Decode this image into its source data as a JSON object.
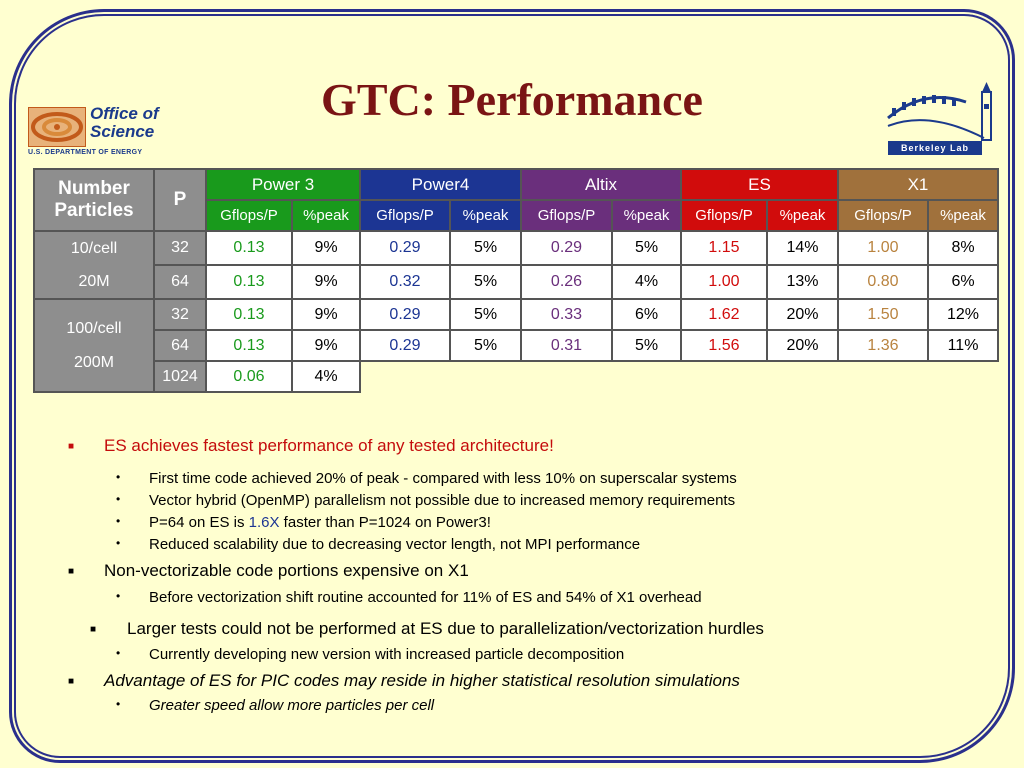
{
  "title": "GTC: Performance",
  "logo_left": {
    "line1": "Office of",
    "line2": "Science",
    "sub": "U.S. DEPARTMENT OF ENERGY"
  },
  "logo_right": {
    "name": "Berkeley Lab"
  },
  "table": {
    "hdr_particles": "Number Particles",
    "hdr_p": "P",
    "machines": [
      "Power 3",
      "Power4",
      "Altix",
      "ES",
      "X1"
    ],
    "sub_gflops": "Gflops/P",
    "sub_peak": "%peak",
    "groups": [
      {
        "label_a": "10/cell",
        "label_b": "20M"
      },
      {
        "label_a": "100/cell",
        "label_b": "200M"
      }
    ],
    "rows": [
      {
        "p": "32",
        "vals": [
          "0.13",
          "9%",
          "0.29",
          "5%",
          "0.29",
          "5%",
          "1.15",
          "14%",
          "1.00",
          "8%"
        ]
      },
      {
        "p": "64",
        "vals": [
          "0.13",
          "9%",
          "0.32",
          "5%",
          "0.26",
          "4%",
          "1.00",
          "13%",
          "0.80",
          "6%"
        ]
      },
      {
        "p": "32",
        "vals": [
          "0.13",
          "9%",
          "0.29",
          "5%",
          "0.33",
          "6%",
          "1.62",
          "20%",
          "1.50",
          "12%"
        ]
      },
      {
        "p": "64",
        "vals": [
          "0.13",
          "9%",
          "0.29",
          "5%",
          "0.31",
          "5%",
          "1.56",
          "20%",
          "1.36",
          "11%"
        ]
      },
      {
        "p": "1024",
        "vals": [
          "0.06",
          "4%"
        ]
      }
    ]
  },
  "bullets": {
    "b1": "ES achieves fastest performance of any tested architecture!",
    "b1_1": "First time code achieved 20% of peak - compared with less 10% on superscalar systems",
    "b1_2": "Vector hybrid (OpenMP) parallelism not possible due to increased memory requirements",
    "b1_3_pre": "P=64 on ES is ",
    "b1_3_hl": "1.6X",
    "b1_3_post": " faster than P=1024 on Power3!",
    "b1_4": "Reduced scalability due to decreasing vector length, not MPI performance",
    "b2": "Non-vectorizable code portions expensive on X1",
    "b2_1": "Before vectorization shift routine accounted for 11% of ES and 54% of X1 overhead",
    "b3": "Larger tests could not be performed at ES due to parallelization/vectorization hurdles",
    "b3_1": "Currently developing new version with increased particle decomposition",
    "b4": "Advantage of ES for PIC codes may reside in higher statistical resolution simulations",
    "b4_1": "Greater speed allow more particles per cell"
  },
  "colors": {
    "power3": "#199a1c",
    "power4": "#1c3593",
    "altix": "#6a2f7c",
    "es": "#d10c0c",
    "x1": "#a0713c",
    "title": "#7a1414"
  },
  "markers": {
    "square": "■",
    "dot": "•"
  }
}
